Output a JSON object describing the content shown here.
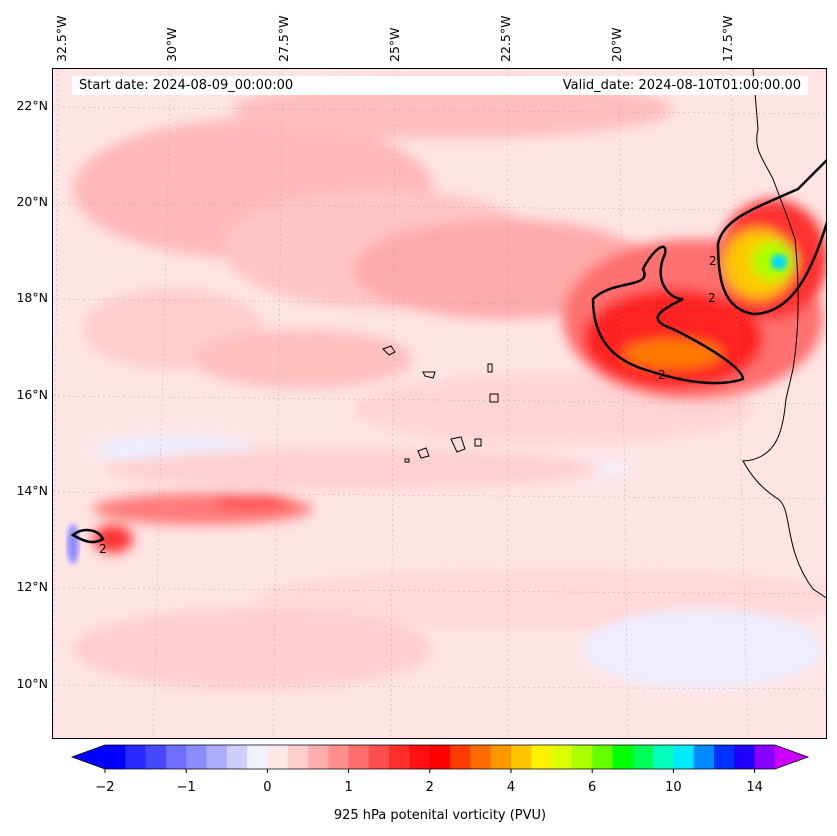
{
  "header": {
    "start_date": "Start date: 2024-08-09_00:00:00",
    "valid_date": "Valid_date: 2024-08-10T01:00:00.00"
  },
  "chart_data": {
    "type": "heatmap",
    "variable_label": "925 hPa potenital vorticity (PVU)",
    "lon_ticks": [
      "32.5°W",
      "30°W",
      "27.5°W",
      "25°W",
      "22.5°W",
      "20°W",
      "17.5°W"
    ],
    "lat_ticks": [
      "22°N",
      "20°N",
      "18°N",
      "16°N",
      "14°N",
      "12°N",
      "10°N"
    ],
    "colorbar_ticks": [
      "−2",
      "−1",
      "0",
      "1",
      "2",
      "4",
      "6",
      "10",
      "14"
    ],
    "colorbar_tick_index": [
      0,
      4,
      8,
      12,
      16,
      20,
      24,
      28,
      32
    ],
    "colors": [
      "#0000ff",
      "#2a2aff",
      "#4848ff",
      "#6e6eff",
      "#8c8cff",
      "#acacff",
      "#ceceff",
      "#f0f0ff",
      "#ffe8e8",
      "#ffcccc",
      "#ffaeae",
      "#ff8e8e",
      "#ff6c6c",
      "#ff4e4e",
      "#ff2c2c",
      "#ff1010",
      "#ff0000",
      "#ff3c00",
      "#ff6c00",
      "#ff9800",
      "#ffc400",
      "#fff000",
      "#dcff00",
      "#aaff00",
      "#66ff00",
      "#00ff00",
      "#00ff55",
      "#00ffbb",
      "#00eaff",
      "#0088ff",
      "#0033ff",
      "#2200ff",
      "#8800ff"
    ],
    "extend_min_color": "#0000ff",
    "extend_max_color": "#cc00ff",
    "contour_level": "2",
    "contour_labels": [
      "2",
      "2",
      "2",
      "2"
    ]
  }
}
